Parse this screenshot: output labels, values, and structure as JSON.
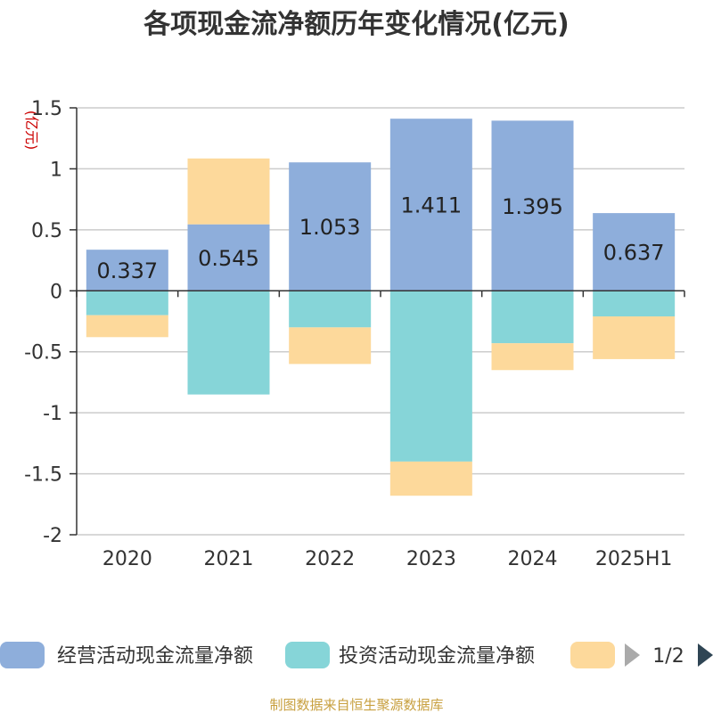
{
  "chart_data": {
    "type": "bar",
    "stacked": true,
    "title": "各项现金流净额历年变化情况(亿元)",
    "ylabel": "(亿元)",
    "ylim": [
      -2,
      1.5
    ],
    "yticks": [
      "1.5",
      "1",
      "0.5",
      "0",
      "-0.5",
      "-1",
      "-1.5",
      "-2"
    ],
    "ytick_values": [
      1.5,
      1,
      0.5,
      0,
      -0.5,
      -1,
      -1.5,
      -2
    ],
    "grid": true,
    "categories": [
      "2020",
      "2021",
      "2022",
      "2023",
      "2024",
      "2025H1"
    ],
    "series": [
      {
        "name": "经营活动现金流量净额",
        "color": "#8eaedb",
        "values": [
          0.337,
          0.545,
          1.053,
          1.411,
          1.395,
          0.637
        ],
        "labels": [
          "0.337",
          "0.545",
          "1.053",
          "1.411",
          "1.395",
          "0.637"
        ]
      },
      {
        "name": "投资活动现金流量净额",
        "color": "#86d5d8",
        "values": [
          -0.2,
          -0.85,
          -0.3,
          -1.4,
          -0.43,
          -0.21
        ]
      },
      {
        "name": "",
        "color": "#fdd99b",
        "values": [
          -0.18,
          0.54,
          -0.3,
          -0.28,
          -0.22,
          -0.35
        ]
      }
    ],
    "legend": {
      "position": "bottom",
      "page": "1/2"
    },
    "source": "制图数据来自恒生聚源数据库"
  }
}
